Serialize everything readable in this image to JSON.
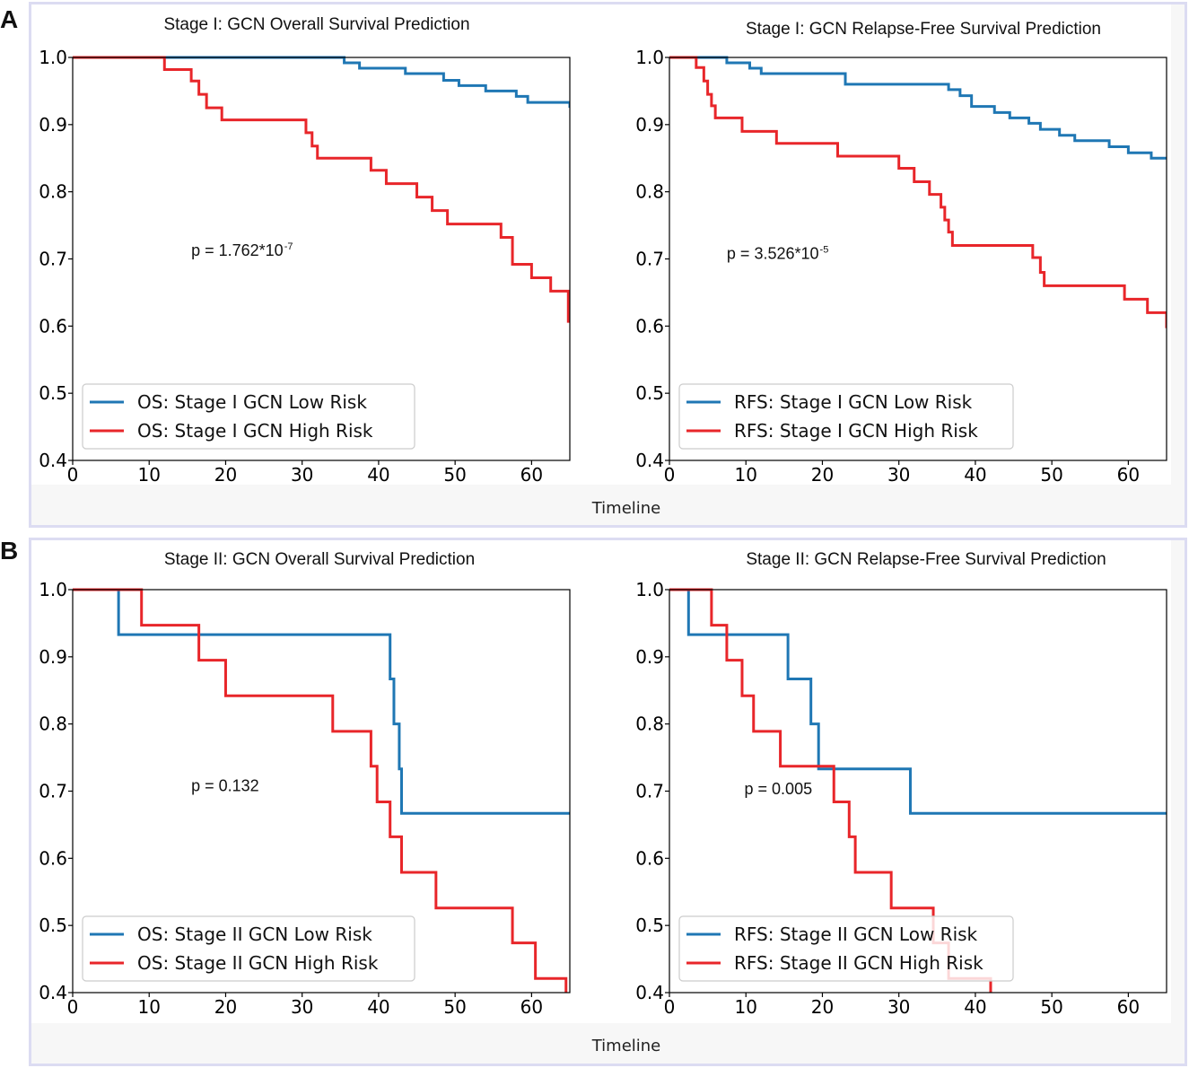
{
  "figure": {
    "panel_a_letter": "A",
    "panel_b_letter": "B",
    "timeline_label_a": "Timeline",
    "timeline_label_b": "Timeline"
  },
  "colors": {
    "low_risk": "#1f77b4",
    "high_risk": "#e8262a"
  },
  "chart_data": [
    {
      "type": "line",
      "title": "Stage I: GCN Overall Survival Prediction",
      "xlabel": "Timeline",
      "ylabel": "",
      "xlim": [
        0,
        65
      ],
      "ylim": [
        0.4,
        1.0
      ],
      "xticks": [
        "0",
        "10",
        "20",
        "30",
        "40",
        "50",
        "60"
      ],
      "yticks": [
        "0.4",
        "0.5",
        "0.6",
        "0.7",
        "0.8",
        "0.9",
        "1.0"
      ],
      "annotation": {
        "text": "p = 1.762*10",
        "sup": "-7",
        "x": 15.5,
        "y": 0.705
      },
      "legend_position": "lower-left",
      "series": [
        {
          "name": "OS: Stage I GCN Low Risk",
          "color": "#1f77b4",
          "x": [
            0,
            35.5,
            37.5,
            43.5,
            48.5,
            50.5,
            54,
            58,
            59.5,
            65
          ],
          "y": [
            1.0,
            0.992,
            0.984,
            0.976,
            0.966,
            0.958,
            0.95,
            0.942,
            0.933,
            0.925
          ]
        },
        {
          "name": "OS: Stage I GCN High Risk",
          "color": "#e8262a",
          "x": [
            0,
            12,
            15.5,
            16.5,
            17.5,
            19.5,
            30.5,
            31.3,
            32,
            39,
            41,
            45,
            47,
            49,
            56,
            57.5,
            60,
            62.5,
            64.8
          ],
          "y": [
            1.0,
            0.982,
            0.965,
            0.945,
            0.925,
            0.907,
            0.888,
            0.868,
            0.85,
            0.832,
            0.812,
            0.792,
            0.772,
            0.752,
            0.732,
            0.692,
            0.672,
            0.652,
            0.632
          ],
          "final_drop": 0.605
        }
      ]
    },
    {
      "type": "line",
      "title": "Stage I: GCN Relapse-Free Survival Prediction",
      "xlabel": "Timeline",
      "ylabel": "",
      "xlim": [
        0,
        65
      ],
      "ylim": [
        0.4,
        1.0
      ],
      "xticks": [
        "0",
        "10",
        "20",
        "30",
        "40",
        "50",
        "60"
      ],
      "yticks": [
        "0.4",
        "0.5",
        "0.6",
        "0.7",
        "0.8",
        "0.9",
        "1.0"
      ],
      "annotation": {
        "text": "p = 3.526*10",
        "sup": "-5",
        "x": 7.5,
        "y": 0.7
      },
      "legend_position": "lower-left",
      "series": [
        {
          "name": "RFS: Stage I GCN Low Risk",
          "color": "#1f77b4",
          "x": [
            0,
            7.5,
            10.5,
            12,
            23,
            36.5,
            38,
            39.5,
            42.5,
            44.5,
            47,
            48.5,
            51,
            53,
            57.5,
            60,
            63,
            65
          ],
          "y": [
            1.0,
            0.992,
            0.984,
            0.976,
            0.96,
            0.952,
            0.943,
            0.927,
            0.918,
            0.91,
            0.902,
            0.893,
            0.884,
            0.876,
            0.867,
            0.858,
            0.85,
            0.85
          ]
        },
        {
          "name": "RFS: Stage I GCN High Risk",
          "color": "#e8262a",
          "x": [
            0,
            3.5,
            4.5,
            5,
            5.5,
            6,
            9.5,
            14,
            22,
            30,
            32,
            34,
            35.5,
            36,
            36.5,
            37,
            47.5,
            48.5,
            49,
            59.5,
            62.5,
            65
          ],
          "y": [
            1.0,
            0.985,
            0.965,
            0.945,
            0.928,
            0.91,
            0.89,
            0.872,
            0.853,
            0.835,
            0.815,
            0.796,
            0.777,
            0.758,
            0.74,
            0.72,
            0.702,
            0.68,
            0.66,
            0.64,
            0.62,
            0.597
          ]
        }
      ]
    },
    {
      "type": "line",
      "title": "Stage II: GCN Overall Survival Prediction",
      "xlabel": "Timeline",
      "ylabel": "",
      "xlim": [
        0,
        65
      ],
      "ylim": [
        0.4,
        1.0
      ],
      "xticks": [
        "0",
        "10",
        "20",
        "30",
        "40",
        "50",
        "60"
      ],
      "yticks": [
        "0.4",
        "0.5",
        "0.6",
        "0.7",
        "0.8",
        "0.9",
        "1.0"
      ],
      "annotation": {
        "text": "p = 0.132",
        "sup": "",
        "x": 15.5,
        "y": 0.7
      },
      "legend_position": "lower-left",
      "series": [
        {
          "name": "OS: Stage II GCN Low Risk",
          "color": "#1f77b4",
          "x": [
            0,
            6,
            41.5,
            42,
            42.7,
            43,
            65
          ],
          "y": [
            1.0,
            0.933,
            0.867,
            0.8,
            0.733,
            0.667,
            0.667
          ]
        },
        {
          "name": "OS: Stage II GCN High Risk",
          "color": "#e8262a",
          "x": [
            0,
            9,
            16.5,
            20,
            34,
            39,
            39.8,
            41.5,
            43,
            47.5,
            57.5,
            60.5,
            64.5
          ],
          "y": [
            1.0,
            0.947,
            0.895,
            0.842,
            0.789,
            0.737,
            0.684,
            0.632,
            0.579,
            0.526,
            0.474,
            0.421,
            0.4
          ]
        }
      ]
    },
    {
      "type": "line",
      "title": "Stage II: GCN Relapse-Free Survival Prediction",
      "xlabel": "Timeline",
      "ylabel": "",
      "xlim": [
        0,
        65
      ],
      "ylim": [
        0.4,
        1.0
      ],
      "xticks": [
        "0",
        "10",
        "20",
        "30",
        "40",
        "50",
        "60"
      ],
      "yticks": [
        "0.4",
        "0.5",
        "0.6",
        "0.7",
        "0.8",
        "0.9",
        "1.0"
      ],
      "annotation": {
        "text": "p = 0.005",
        "sup": "",
        "x": 9.8,
        "y": 0.695
      },
      "legend_position": "lower-left",
      "series": [
        {
          "name": "RFS: Stage II GCN Low Risk",
          "color": "#1f77b4",
          "x": [
            0,
            2.5,
            15.5,
            18.5,
            19.5,
            31.5,
            65
          ],
          "y": [
            1.0,
            0.933,
            0.867,
            0.8,
            0.733,
            0.667,
            0.667
          ]
        },
        {
          "name": "RFS: Stage II GCN High Risk",
          "color": "#e8262a",
          "x": [
            0,
            5.5,
            7.5,
            9.5,
            11,
            14.5,
            21.5,
            23.5,
            24.3,
            29,
            34.5,
            36.5,
            42
          ],
          "y": [
            1.0,
            0.947,
            0.895,
            0.842,
            0.789,
            0.737,
            0.684,
            0.632,
            0.579,
            0.526,
            0.474,
            0.421,
            0.4
          ]
        }
      ]
    }
  ]
}
